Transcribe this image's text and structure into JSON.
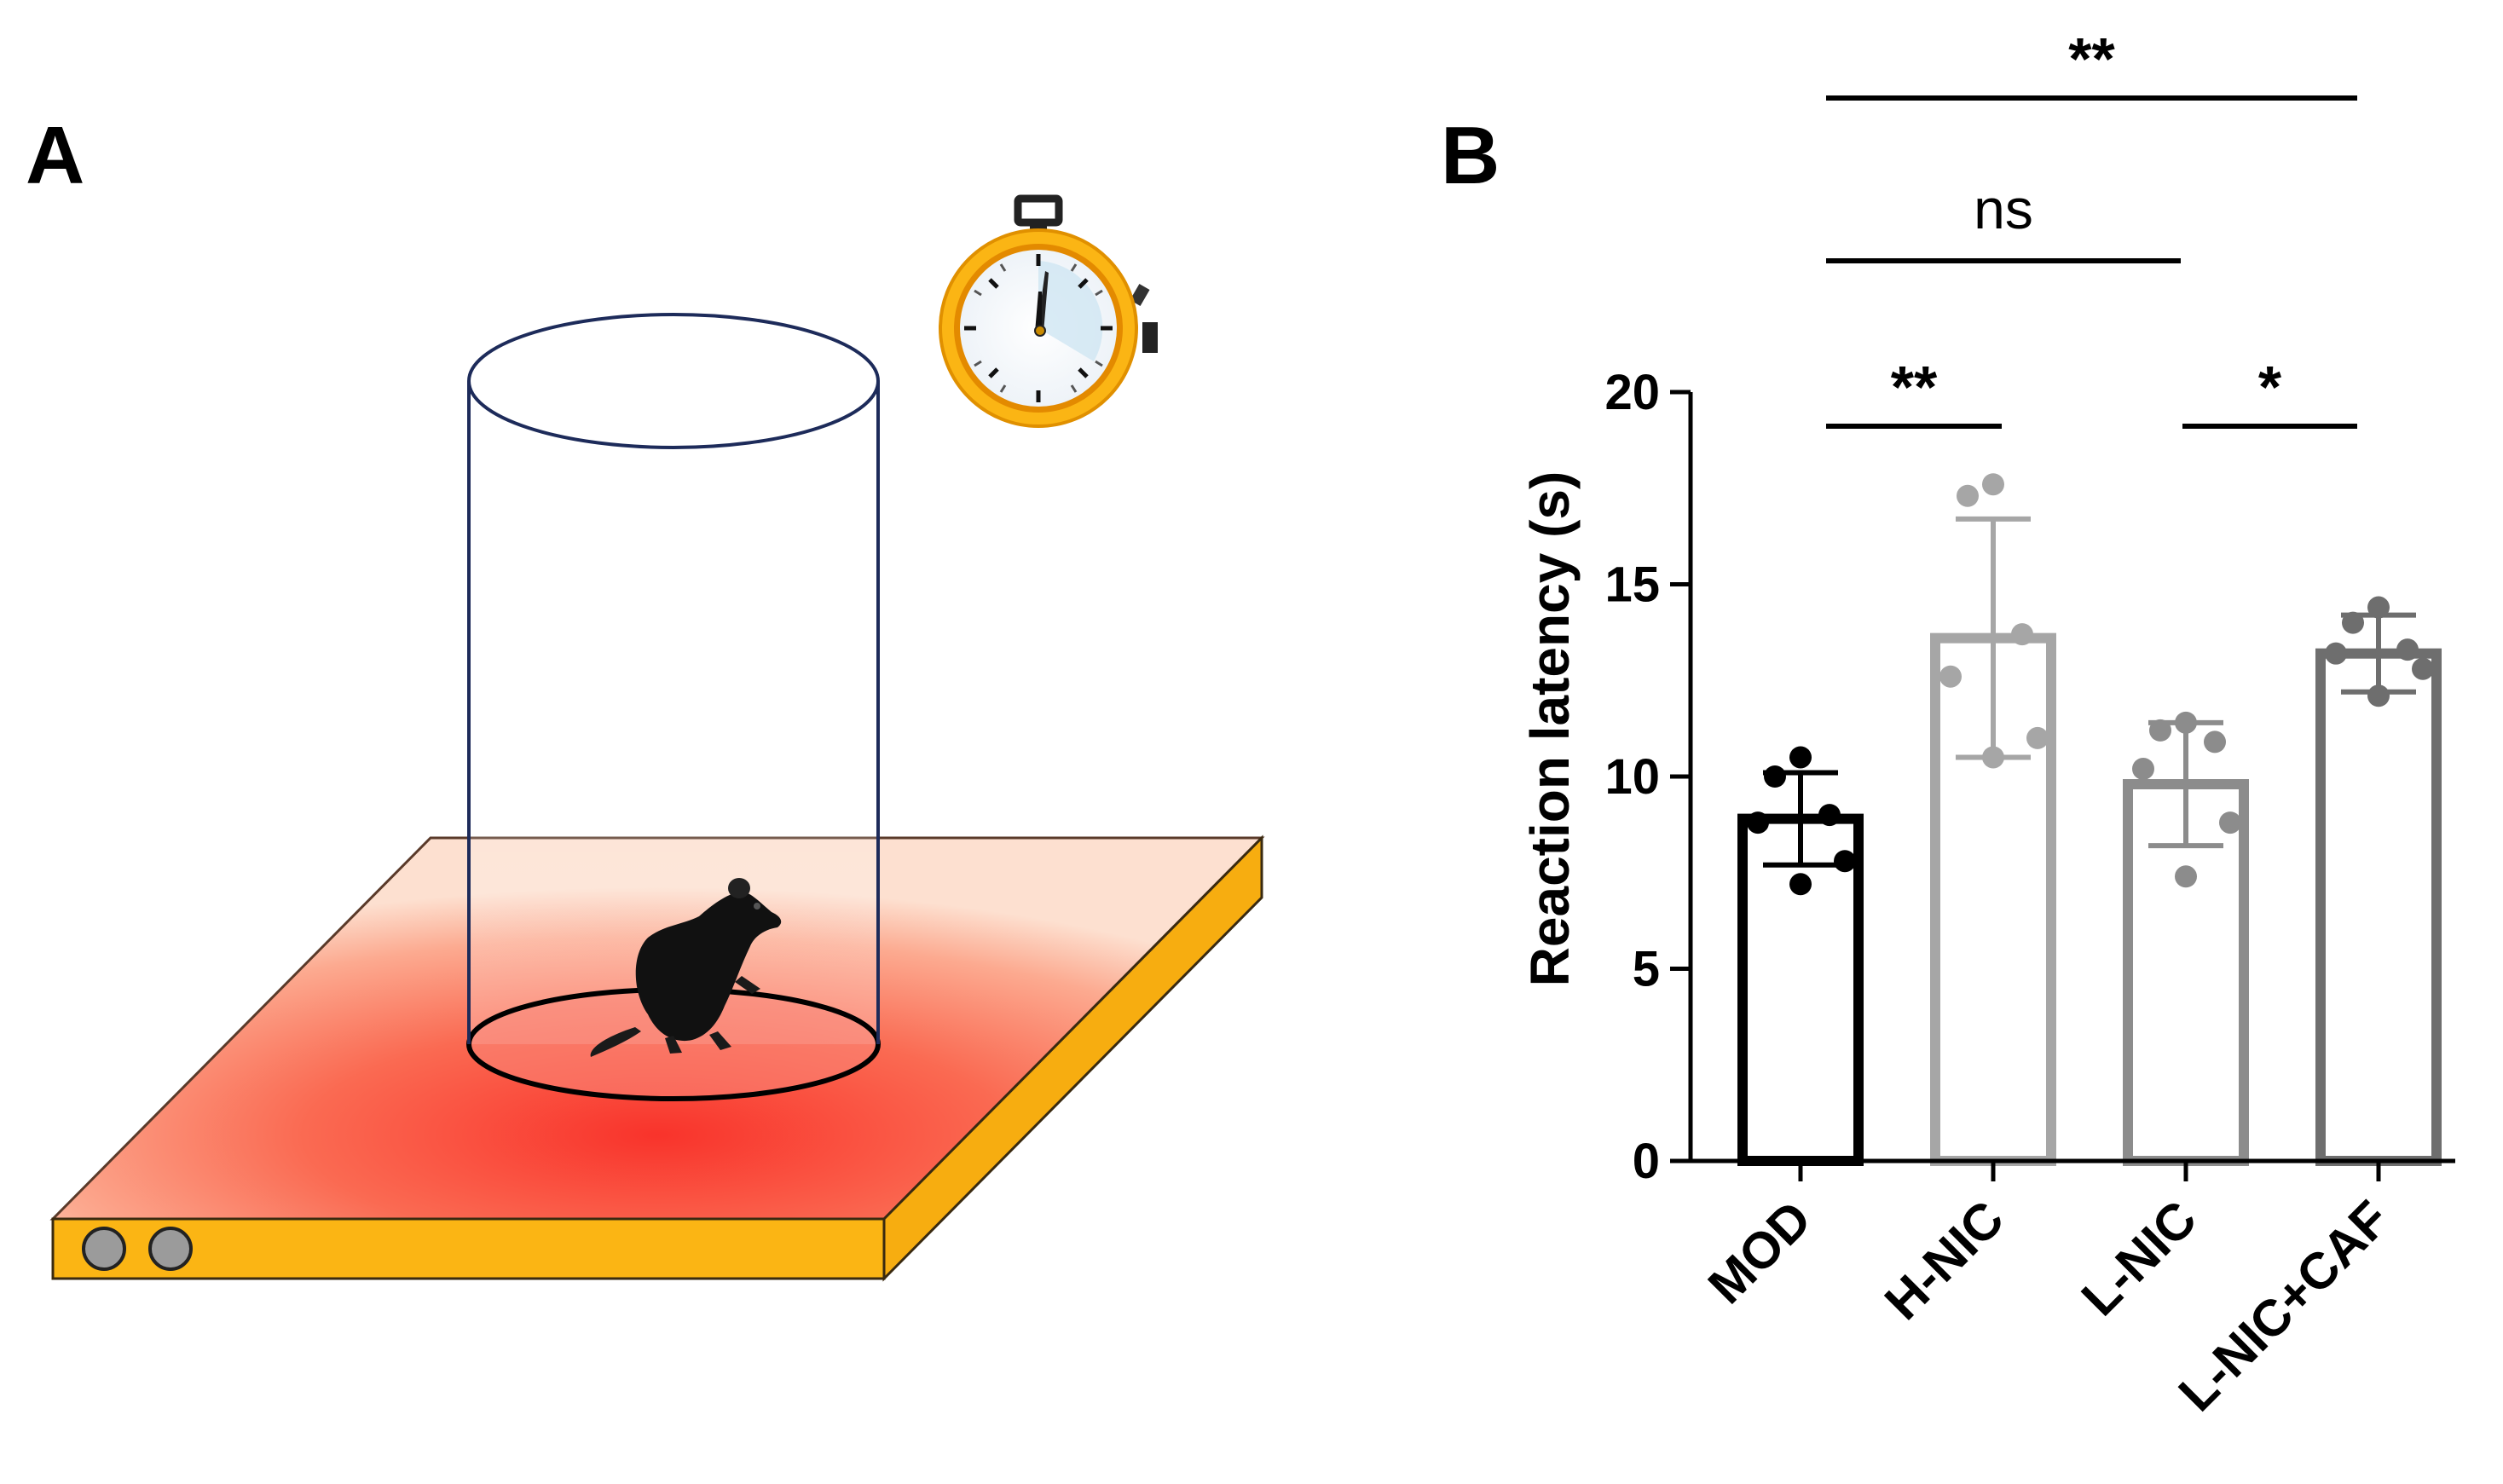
{
  "panels": {
    "a_label": "A",
    "b_label": "B"
  },
  "illustration": {
    "subject_icon": "mouse-icon",
    "timer_icon": "stopwatch-icon",
    "plate_color": "#f4463c",
    "plate_edge_color": "#fbb514",
    "cylinder_color": "#1d2b5a"
  },
  "chart_data": {
    "type": "bar",
    "title": "",
    "xlabel": "",
    "ylabel": "Reaction latency (s)",
    "ylim": [
      0,
      20
    ],
    "yticks": [
      0,
      5,
      10,
      15,
      20
    ],
    "categories": [
      "MOD",
      "H-NIC",
      "L-NIC",
      "L-NIC+CAF"
    ],
    "values": [
      8.9,
      13.6,
      9.8,
      13.2
    ],
    "sd": [
      1.2,
      3.1,
      1.6,
      1.0
    ],
    "points": [
      [
        10.5,
        10.0,
        9.0,
        8.8,
        7.8,
        7.2
      ],
      [
        17.6,
        17.3,
        13.7,
        12.6,
        11.0,
        10.5
      ],
      [
        11.4,
        11.2,
        10.9,
        10.2,
        8.8,
        7.4
      ],
      [
        14.4,
        14.0,
        13.3,
        13.2,
        12.8,
        12.1
      ]
    ],
    "bar_colors": [
      "#000000",
      "#a6a6a6",
      "#8c8c8c",
      "#6e6e6e"
    ],
    "significance": [
      {
        "from": 0,
        "to": 1,
        "label": "**"
      },
      {
        "from": 2,
        "to": 3,
        "label": "*"
      },
      {
        "from": 0,
        "to": 2,
        "label": "ns"
      },
      {
        "from": 0,
        "to": 3,
        "label": "**"
      }
    ]
  }
}
